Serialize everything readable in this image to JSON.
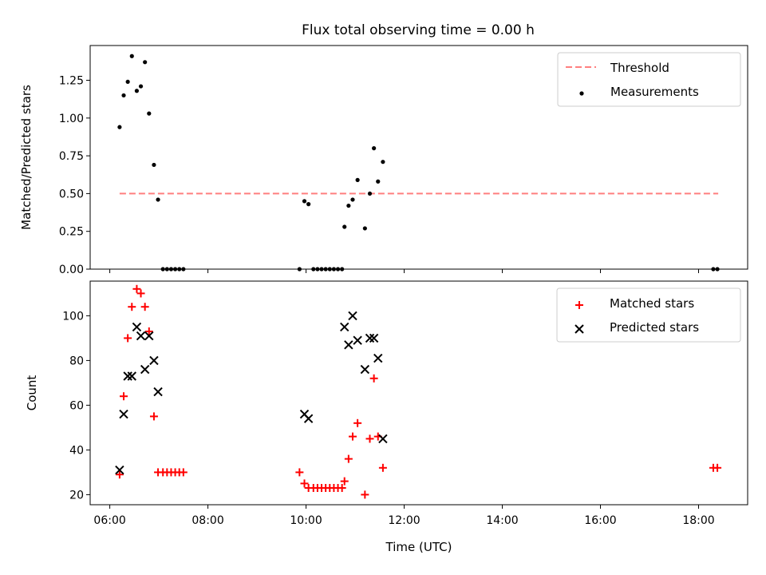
{
  "title": "Flux total observing time = 0.00 h",
  "chart_data": [
    {
      "type": "scatter",
      "ylabel": "Matched/Predicted stars",
      "ylim": [
        0,
        1.48
      ],
      "yticks": [
        0,
        0.25,
        0.5,
        0.75,
        1.0,
        1.25
      ],
      "ytick_labels": [
        "0.00",
        "0.25",
        "0.50",
        "0.75",
        "1.00",
        "1.25"
      ],
      "legend": {
        "placement": "upper-right",
        "entries": [
          "Threshold",
          "Measurements"
        ]
      },
      "threshold": {
        "name": "Threshold",
        "value": 0.5,
        "x_start": "06:12",
        "x_end": "18:24",
        "color": "#ff7f7f",
        "style": "dashed"
      },
      "series": [
        {
          "name": "Measurements",
          "marker": "dot",
          "color": "#000000",
          "points": [
            [
              "06:12",
              0.94
            ],
            [
              "06:17",
              1.15
            ],
            [
              "06:22",
              1.24
            ],
            [
              "06:27",
              1.41
            ],
            [
              "06:33",
              1.18
            ],
            [
              "06:38",
              1.21
            ],
            [
              "06:43",
              1.37
            ],
            [
              "06:48",
              1.03
            ],
            [
              "06:54",
              0.69
            ],
            [
              "06:59",
              0.46
            ],
            [
              "07:05",
              0
            ],
            [
              "07:10",
              0
            ],
            [
              "07:15",
              0
            ],
            [
              "07:20",
              0
            ],
            [
              "07:25",
              0
            ],
            [
              "07:30",
              0
            ],
            [
              "09:52",
              0
            ],
            [
              "09:58",
              0.45
            ],
            [
              "10:03",
              0.43
            ],
            [
              "10:09",
              0
            ],
            [
              "10:14",
              0
            ],
            [
              "10:19",
              0
            ],
            [
              "10:24",
              0
            ],
            [
              "10:29",
              0
            ],
            [
              "10:34",
              0
            ],
            [
              "10:39",
              0
            ],
            [
              "10:44",
              0
            ],
            [
              "10:47",
              0.28
            ],
            [
              "10:52",
              0.42
            ],
            [
              "10:57",
              0.46
            ],
            [
              "11:03",
              0.59
            ],
            [
              "11:12",
              0.27
            ],
            [
              "11:18",
              0.5
            ],
            [
              "11:23",
              0.8
            ],
            [
              "11:28",
              0.58
            ],
            [
              "11:34",
              0.71
            ],
            [
              "18:18",
              0
            ],
            [
              "18:23",
              0
            ]
          ]
        }
      ]
    },
    {
      "type": "scatter",
      "xlabel": "Time (UTC)",
      "ylabel": "Count",
      "ylim": [
        15.5,
        115.5
      ],
      "yticks": [
        20,
        40,
        60,
        80,
        100
      ],
      "ytick_labels": [
        "20",
        "40",
        "60",
        "80",
        "100"
      ],
      "xlim": [
        "05:36",
        "19:00"
      ],
      "xticks": [
        "06:00",
        "08:00",
        "10:00",
        "12:00",
        "14:00",
        "16:00",
        "18:00"
      ],
      "legend": {
        "placement": "upper-right",
        "entries": [
          "Matched stars",
          "Predicted stars"
        ]
      },
      "series": [
        {
          "name": "Matched stars",
          "marker": "plus",
          "color": "#ff0000",
          "points": [
            [
              "06:12",
              29
            ],
            [
              "06:17",
              64
            ],
            [
              "06:22",
              90
            ],
            [
              "06:27",
              104
            ],
            [
              "06:33",
              112
            ],
            [
              "06:38",
              110
            ],
            [
              "06:43",
              104
            ],
            [
              "06:48",
              93
            ],
            [
              "06:54",
              55
            ],
            [
              "06:59",
              30
            ],
            [
              "07:05",
              30
            ],
            [
              "07:10",
              30
            ],
            [
              "07:15",
              30
            ],
            [
              "07:20",
              30
            ],
            [
              "07:25",
              30
            ],
            [
              "07:30",
              30
            ],
            [
              "09:52",
              30
            ],
            [
              "09:58",
              25
            ],
            [
              "10:03",
              23
            ],
            [
              "10:09",
              23
            ],
            [
              "10:14",
              23
            ],
            [
              "10:19",
              23
            ],
            [
              "10:24",
              23
            ],
            [
              "10:29",
              23
            ],
            [
              "10:34",
              23
            ],
            [
              "10:39",
              23
            ],
            [
              "10:44",
              23
            ],
            [
              "10:47",
              26
            ],
            [
              "10:52",
              36
            ],
            [
              "10:57",
              46
            ],
            [
              "11:03",
              52
            ],
            [
              "11:12",
              20
            ],
            [
              "11:18",
              45
            ],
            [
              "11:23",
              72
            ],
            [
              "11:28",
              46
            ],
            [
              "11:34",
              32
            ],
            [
              "18:18",
              32
            ],
            [
              "18:23",
              32
            ]
          ]
        },
        {
          "name": "Predicted stars",
          "marker": "x",
          "color": "#000000",
          "points": [
            [
              "06:12",
              31
            ],
            [
              "06:17",
              56
            ],
            [
              "06:22",
              73
            ],
            [
              "06:27",
              73
            ],
            [
              "06:33",
              95
            ],
            [
              "06:38",
              91
            ],
            [
              "06:43",
              76
            ],
            [
              "06:48",
              91
            ],
            [
              "06:54",
              80
            ],
            [
              "06:59",
              66
            ],
            [
              "09:58",
              56
            ],
            [
              "10:03",
              54
            ],
            [
              "10:47",
              95
            ],
            [
              "10:52",
              87
            ],
            [
              "10:57",
              100
            ],
            [
              "11:03",
              89
            ],
            [
              "11:12",
              76
            ],
            [
              "11:18",
              90
            ],
            [
              "11:23",
              90
            ],
            [
              "11:28",
              81
            ],
            [
              "11:34",
              45
            ]
          ]
        }
      ]
    }
  ]
}
